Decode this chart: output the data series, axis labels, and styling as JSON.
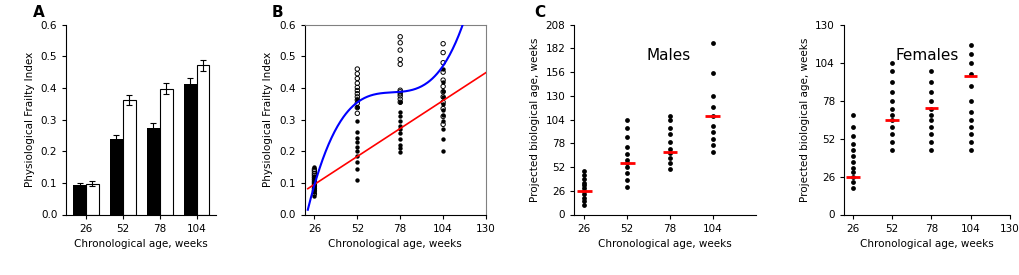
{
  "panel_A": {
    "ages": [
      26,
      52,
      78,
      104
    ],
    "male_mean": [
      0.093,
      0.238,
      0.275,
      0.413
    ],
    "male_sem": [
      0.008,
      0.012,
      0.015,
      0.018
    ],
    "female_mean": [
      0.098,
      0.362,
      0.398,
      0.472
    ],
    "female_sem": [
      0.007,
      0.015,
      0.018,
      0.017
    ],
    "ylabel": "Physiological Frailty Index",
    "xlabel": "Chronological age, weeks",
    "ylim": [
      0.0,
      0.6
    ],
    "yticks": [
      0.0,
      0.1,
      0.2,
      0.3,
      0.4,
      0.5,
      0.6
    ],
    "label": "A"
  },
  "panel_B": {
    "male_pts_x": [
      26,
      26,
      26,
      26,
      26,
      26,
      26,
      26,
      26,
      26,
      26,
      52,
      52,
      52,
      52,
      52,
      52,
      52,
      52,
      52,
      52,
      52,
      52,
      78,
      78,
      78,
      78,
      78,
      78,
      78,
      78,
      78,
      78,
      78,
      104,
      104,
      104,
      104,
      104,
      104,
      104,
      104,
      104,
      104,
      104
    ],
    "male_pts_y": [
      0.058,
      0.072,
      0.08,
      0.086,
      0.092,
      0.097,
      0.103,
      0.108,
      0.115,
      0.122,
      0.15,
      0.108,
      0.145,
      0.165,
      0.185,
      0.2,
      0.215,
      0.228,
      0.242,
      0.26,
      0.295,
      0.34,
      0.365,
      0.198,
      0.21,
      0.22,
      0.24,
      0.258,
      0.27,
      0.28,
      0.295,
      0.31,
      0.325,
      0.355,
      0.2,
      0.24,
      0.27,
      0.295,
      0.315,
      0.33,
      0.35,
      0.37,
      0.39,
      0.42,
      0.46
    ],
    "female_pts_x": [
      26,
      26,
      26,
      26,
      26,
      26,
      26,
      26,
      26,
      26,
      26,
      26,
      52,
      52,
      52,
      52,
      52,
      52,
      52,
      52,
      52,
      52,
      52,
      52,
      78,
      78,
      78,
      78,
      78,
      78,
      78,
      78,
      78,
      78,
      78,
      104,
      104,
      104,
      104,
      104,
      104,
      104,
      104,
      104,
      104,
      104,
      104
    ],
    "female_pts_y": [
      0.065,
      0.075,
      0.082,
      0.09,
      0.097,
      0.103,
      0.11,
      0.117,
      0.124,
      0.13,
      0.137,
      0.143,
      0.32,
      0.338,
      0.352,
      0.362,
      0.372,
      0.382,
      0.392,
      0.402,
      0.415,
      0.43,
      0.445,
      0.46,
      0.355,
      0.365,
      0.375,
      0.382,
      0.388,
      0.393,
      0.475,
      0.49,
      0.52,
      0.543,
      0.562,
      0.285,
      0.31,
      0.335,
      0.355,
      0.372,
      0.388,
      0.405,
      0.425,
      0.45,
      0.48,
      0.512,
      0.54
    ],
    "ylabel": "Physiological Frailty Index",
    "xlabel": "Chronological age, weeks",
    "ylim": [
      0.0,
      0.6
    ],
    "yticks": [
      0.0,
      0.1,
      0.2,
      0.3,
      0.4,
      0.5,
      0.6
    ],
    "xlim": [
      20,
      130
    ],
    "xticks": [
      26,
      52,
      78,
      104,
      130
    ],
    "label": "B"
  },
  "panel_C_males": {
    "pts_x": [
      26,
      26,
      26,
      26,
      26,
      26,
      26,
      26,
      26,
      26,
      26,
      52,
      52,
      52,
      52,
      52,
      52,
      52,
      52,
      52,
      52,
      52,
      78,
      78,
      78,
      78,
      78,
      78,
      78,
      78,
      78,
      78,
      104,
      104,
      104,
      104,
      104,
      104,
      104,
      104,
      104,
      104
    ],
    "pts_y": [
      10,
      15,
      18,
      22,
      26,
      29,
      32,
      35,
      39,
      43,
      48,
      30,
      38,
      46,
      52,
      56,
      60,
      66,
      74,
      85,
      95,
      104,
      50,
      56,
      62,
      67,
      72,
      80,
      88,
      95,
      104,
      108,
      68,
      76,
      83,
      90,
      97,
      108,
      118,
      130,
      155,
      188
    ],
    "mean26": 26,
    "mean52": 57,
    "mean78": 68,
    "mean104": 108,
    "ylabel": "Projected biological age, weeks",
    "xlabel": "Chronological age, weeks",
    "ylim": [
      0,
      208
    ],
    "yticks": [
      0,
      26,
      52,
      78,
      104,
      130,
      156,
      182,
      208
    ],
    "xlim": [
      20,
      130
    ],
    "xticks": [
      26,
      52,
      78,
      104
    ],
    "label": "C",
    "title": "Males"
  },
  "panel_C_females": {
    "pts_x": [
      26,
      26,
      26,
      26,
      26,
      26,
      26,
      26,
      26,
      26,
      26,
      26,
      52,
      52,
      52,
      52,
      52,
      52,
      52,
      52,
      52,
      52,
      52,
      52,
      78,
      78,
      78,
      78,
      78,
      78,
      78,
      78,
      78,
      78,
      78,
      104,
      104,
      104,
      104,
      104,
      104,
      104,
      104,
      104,
      104,
      104,
      104
    ],
    "pts_y": [
      18,
      22,
      26,
      29,
      32,
      36,
      40,
      44,
      48,
      54,
      60,
      68,
      44,
      50,
      55,
      60,
      65,
      68,
      72,
      78,
      84,
      91,
      98,
      104,
      44,
      50,
      55,
      60,
      65,
      68,
      72,
      78,
      84,
      91,
      98,
      44,
      50,
      55,
      60,
      65,
      70,
      78,
      88,
      96,
      104,
      110,
      116
    ],
    "mean26": 26,
    "mean52": 65,
    "mean78": 73,
    "mean104": 95,
    "ylabel": "Projected biological age, weeks",
    "xlabel": "Chronological age, weeks",
    "ylim": [
      0,
      130
    ],
    "yticks": [
      0,
      26,
      52,
      78,
      104,
      130
    ],
    "xlim": [
      20,
      130
    ],
    "xticks": [
      26,
      52,
      78,
      104,
      130
    ],
    "label": "",
    "title": "Females"
  }
}
